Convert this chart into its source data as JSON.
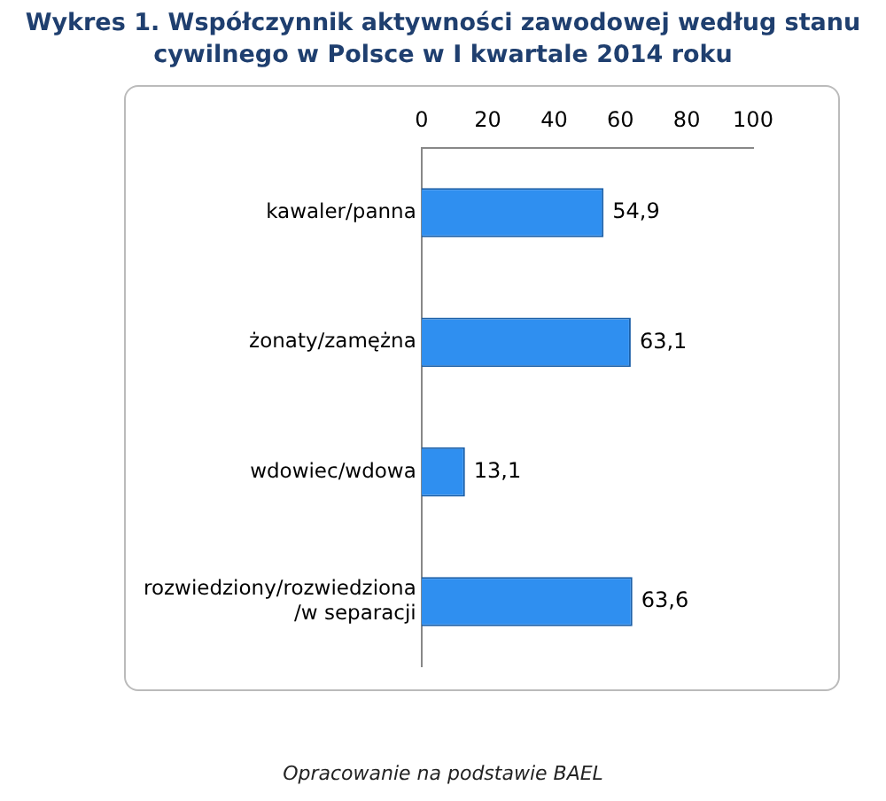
{
  "chart_data": {
    "type": "bar",
    "orientation": "horizontal",
    "title": "Wykres 1. Współczynnik aktywności zawodowej według stanu cywilnego w Polsce w I kwartale 2014 roku",
    "categories": [
      "kawaler/panna",
      "żonaty/zamężna",
      "wdowiec/wdowa",
      "rozwiedziony/rozwiedziona /w separacji"
    ],
    "values": [
      54.9,
      63.1,
      13.1,
      63.6
    ],
    "value_labels": [
      "54,9",
      "63,1",
      "13,1",
      "63,6"
    ],
    "color": "#2f8ff0",
    "xlim": [
      0,
      100
    ],
    "xticks": [
      0,
      20,
      40,
      60,
      80,
      100
    ],
    "grid": false,
    "legend": false,
    "annotations": [
      "Opracowanie na podstawie BAEL"
    ]
  }
}
